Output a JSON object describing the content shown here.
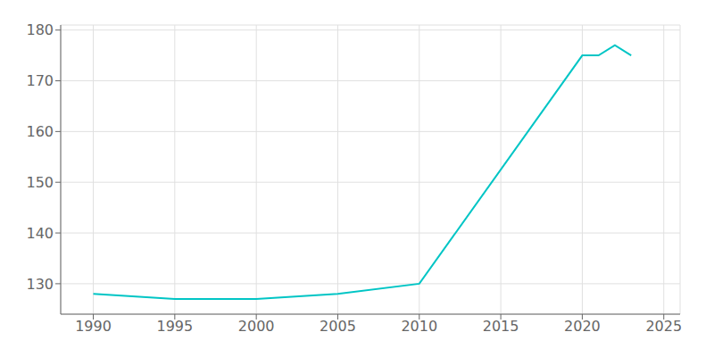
{
  "chart_data": {
    "type": "line",
    "x": [
      1990,
      1995,
      2000,
      2005,
      2010,
      2020,
      2021,
      2022,
      2023
    ],
    "values": [
      128,
      127,
      127,
      128,
      130,
      175,
      175,
      177,
      175
    ],
    "color": "#00C5C5",
    "xlim": [
      1988,
      2026
    ],
    "ylim": [
      124,
      181
    ],
    "xticks": [
      1990,
      1995,
      2000,
      2005,
      2010,
      2015,
      2020,
      2025
    ],
    "yticks": [
      130,
      140,
      150,
      160,
      170,
      180
    ],
    "grid": true
  }
}
